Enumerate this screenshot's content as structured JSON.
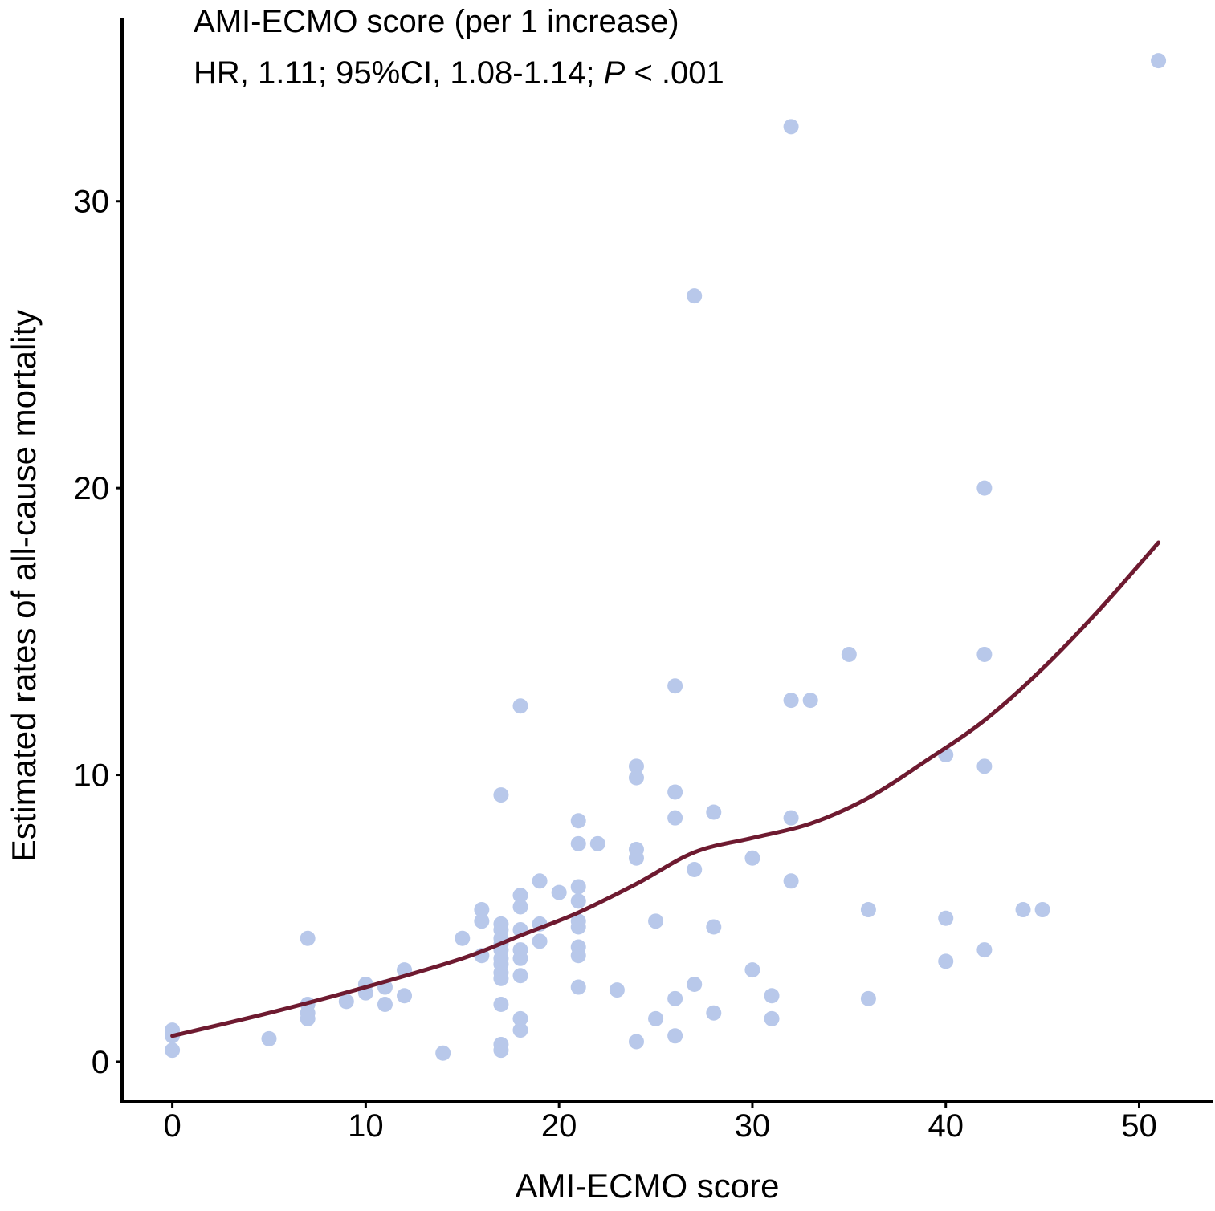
{
  "chart_data": {
    "type": "scatter",
    "title": "",
    "xlabel": "AMI-ECMO score",
    "ylabel": "Estimated rates of all-cause mortality",
    "annotation": {
      "line1": "AMI-ECMO score (per 1 increase)",
      "line2_prefix": "HR, 1.11; 95%CI, 1.08-1.14; ",
      "line2_p": "P",
      "line2_suffix": " < .001"
    },
    "xlim": [
      -2.6,
      53.8
    ],
    "ylim": [
      -1.4,
      36.4
    ],
    "xticks": [
      0,
      10,
      20,
      30,
      40,
      50
    ],
    "yticks": [
      0,
      10,
      20,
      30
    ],
    "grid": false,
    "legend": "none",
    "colors": {
      "points": "#b8c8ea",
      "curve": "#6e1a30",
      "axis": "#000000"
    },
    "points": [
      {
        "x": 0,
        "y": 1.1
      },
      {
        "x": 0,
        "y": 0.9
      },
      {
        "x": 0,
        "y": 0.4
      },
      {
        "x": 5,
        "y": 0.8
      },
      {
        "x": 7,
        "y": 4.3
      },
      {
        "x": 7,
        "y": 2.0
      },
      {
        "x": 7,
        "y": 1.7
      },
      {
        "x": 7,
        "y": 1.5
      },
      {
        "x": 9,
        "y": 2.1
      },
      {
        "x": 10,
        "y": 2.7
      },
      {
        "x": 10,
        "y": 2.4
      },
      {
        "x": 11,
        "y": 2.6
      },
      {
        "x": 11,
        "y": 2.0
      },
      {
        "x": 12,
        "y": 3.2
      },
      {
        "x": 12,
        "y": 2.3
      },
      {
        "x": 14,
        "y": 0.3
      },
      {
        "x": 15,
        "y": 4.3
      },
      {
        "x": 16,
        "y": 5.3
      },
      {
        "x": 16,
        "y": 4.9
      },
      {
        "x": 16,
        "y": 3.7
      },
      {
        "x": 17,
        "y": 9.3
      },
      {
        "x": 17,
        "y": 4.8
      },
      {
        "x": 17,
        "y": 4.6
      },
      {
        "x": 17,
        "y": 4.3
      },
      {
        "x": 17,
        "y": 4.1
      },
      {
        "x": 17,
        "y": 3.9
      },
      {
        "x": 17,
        "y": 3.6
      },
      {
        "x": 17,
        "y": 3.4
      },
      {
        "x": 17,
        "y": 3.1
      },
      {
        "x": 17,
        "y": 2.9
      },
      {
        "x": 17,
        "y": 2.0
      },
      {
        "x": 17,
        "y": 0.6
      },
      {
        "x": 17,
        "y": 0.4
      },
      {
        "x": 18,
        "y": 12.4
      },
      {
        "x": 18,
        "y": 5.8
      },
      {
        "x": 18,
        "y": 5.4
      },
      {
        "x": 18,
        "y": 4.6
      },
      {
        "x": 18,
        "y": 3.9
      },
      {
        "x": 18,
        "y": 3.6
      },
      {
        "x": 18,
        "y": 3.0
      },
      {
        "x": 18,
        "y": 1.5
      },
      {
        "x": 18,
        "y": 1.1
      },
      {
        "x": 19,
        "y": 6.3
      },
      {
        "x": 19,
        "y": 4.8
      },
      {
        "x": 19,
        "y": 4.2
      },
      {
        "x": 20,
        "y": 5.9
      },
      {
        "x": 21,
        "y": 8.4
      },
      {
        "x": 21,
        "y": 7.6
      },
      {
        "x": 21,
        "y": 6.1
      },
      {
        "x": 21,
        "y": 5.6
      },
      {
        "x": 21,
        "y": 4.9
      },
      {
        "x": 21,
        "y": 4.7
      },
      {
        "x": 21,
        "y": 4.0
      },
      {
        "x": 21,
        "y": 3.7
      },
      {
        "x": 21,
        "y": 2.6
      },
      {
        "x": 22,
        "y": 7.6
      },
      {
        "x": 23,
        "y": 2.5
      },
      {
        "x": 24,
        "y": 10.3
      },
      {
        "x": 24,
        "y": 9.9
      },
      {
        "x": 24,
        "y": 7.4
      },
      {
        "x": 24,
        "y": 7.1
      },
      {
        "x": 24,
        "y": 0.7
      },
      {
        "x": 25,
        "y": 4.9
      },
      {
        "x": 25,
        "y": 1.5
      },
      {
        "x": 26,
        "y": 13.1
      },
      {
        "x": 26,
        "y": 9.4
      },
      {
        "x": 26,
        "y": 8.5
      },
      {
        "x": 26,
        "y": 2.2
      },
      {
        "x": 26,
        "y": 0.9
      },
      {
        "x": 27,
        "y": 26.7
      },
      {
        "x": 27,
        "y": 6.7
      },
      {
        "x": 27,
        "y": 2.7
      },
      {
        "x": 28,
        "y": 8.7
      },
      {
        "x": 28,
        "y": 4.7
      },
      {
        "x": 28,
        "y": 1.7
      },
      {
        "x": 30,
        "y": 7.1
      },
      {
        "x": 30,
        "y": 3.2
      },
      {
        "x": 31,
        "y": 2.3
      },
      {
        "x": 31,
        "y": 1.5
      },
      {
        "x": 32,
        "y": 32.6
      },
      {
        "x": 32,
        "y": 12.6
      },
      {
        "x": 32,
        "y": 8.5
      },
      {
        "x": 32,
        "y": 6.3
      },
      {
        "x": 33,
        "y": 12.6
      },
      {
        "x": 35,
        "y": 14.2
      },
      {
        "x": 36,
        "y": 5.3
      },
      {
        "x": 36,
        "y": 2.2
      },
      {
        "x": 40,
        "y": 10.7
      },
      {
        "x": 40,
        "y": 5.0
      },
      {
        "x": 40,
        "y": 3.5
      },
      {
        "x": 42,
        "y": 20.0
      },
      {
        "x": 42,
        "y": 14.2
      },
      {
        "x": 42,
        "y": 10.3
      },
      {
        "x": 42,
        "y": 3.9
      },
      {
        "x": 44,
        "y": 5.3
      },
      {
        "x": 45,
        "y": 5.3
      },
      {
        "x": 51,
        "y": 34.9
      }
    ],
    "fit_curve": {
      "x": [
        0,
        5,
        10,
        15,
        18,
        21,
        24,
        27,
        30,
        33,
        36,
        39,
        42,
        45,
        48,
        51
      ],
      "y": [
        0.9,
        1.7,
        2.6,
        3.6,
        4.4,
        5.2,
        6.2,
        7.3,
        7.8,
        8.3,
        9.2,
        10.5,
        11.9,
        13.7,
        15.8,
        18.1
      ]
    }
  }
}
